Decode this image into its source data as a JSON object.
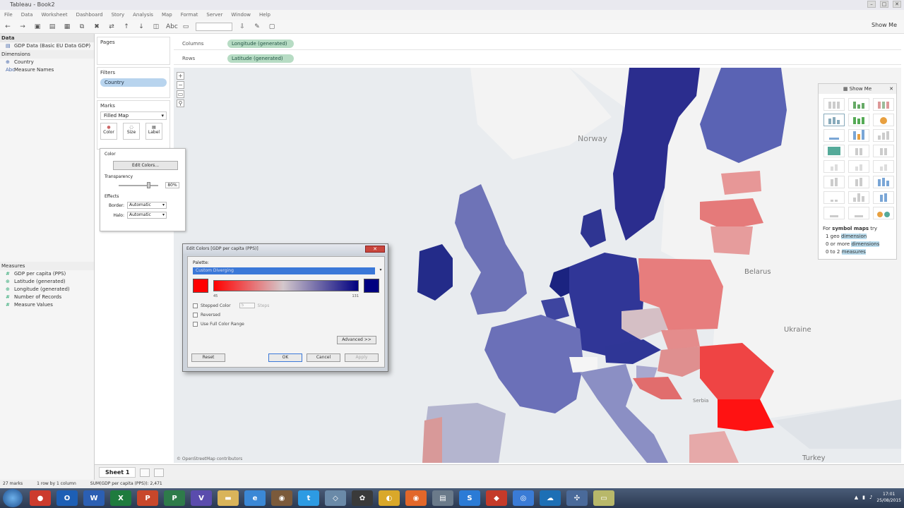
{
  "window": {
    "title": "Tableau - Book2"
  },
  "menu": [
    "File",
    "Data",
    "Worksheet",
    "Dashboard",
    "Story",
    "Analysis",
    "Map",
    "Format",
    "Server",
    "Window",
    "Help"
  ],
  "toolbar": {
    "show_me": "Show Me",
    "abc": "Abc"
  },
  "data_pane": {
    "header": "Data",
    "source": "GDP Data (Basic EU Data GDP)",
    "dimensions_header": "Dimensions",
    "dimensions": [
      "Country",
      "Measure Names"
    ],
    "measures_header": "Measures",
    "measures": [
      "GDP per capita (PPS)",
      "Latitude (generated)",
      "Longitude (generated)",
      "Number of Records",
      "Measure Values"
    ]
  },
  "pages": {
    "label": "Pages"
  },
  "filters": {
    "label": "Filters",
    "pill": "Country"
  },
  "marks": {
    "label": "Marks",
    "type": "Filled Map",
    "buttons": [
      "Color",
      "Size",
      "Label"
    ]
  },
  "shelves": {
    "columns_label": "Columns",
    "columns_pill": "Longitude (generated)",
    "rows_label": "Rows",
    "rows_pill": "Latitude (generated)"
  },
  "color_popup": {
    "title": "Color",
    "edit_button": "Edit Colors...",
    "transparency_label": "Transparency",
    "transparency_value": "80%",
    "effects_label": "Effects",
    "border_label": "Border:",
    "border_value": "Automatic",
    "halo_label": "Halo:",
    "halo_value": "Automatic"
  },
  "dialog": {
    "title": "Edit Colors [GDP per capita (PPS)]",
    "palette_label": "Palette:",
    "palette_value": "Custom Diverging",
    "min_value": "45",
    "max_value": "131",
    "stepped_label": "Stepped Color",
    "stepped_value": "5",
    "steps_label": "Steps",
    "reversed_label": "Reversed",
    "full_range_label": "Use Full Color Range",
    "advanced_button": "Advanced >>",
    "reset_button": "Reset",
    "ok_button": "OK",
    "cancel_button": "Cancel",
    "apply_button": "Apply",
    "start_color": "#ff0000",
    "end_color": "#000080"
  },
  "map": {
    "labels": {
      "norway": "Norway",
      "belarus": "Belarus",
      "ukraine": "Ukraine",
      "turkey": "Turkey",
      "serbia": "Serbia"
    },
    "attribution": "© OpenStreetMap contributors"
  },
  "show_me": {
    "title": "Show Me",
    "note_prefix": "For",
    "note_strong": "symbol maps",
    "note_suffix": "try",
    "lines": [
      {
        "count": "1 geo",
        "term": "dimension"
      },
      {
        "count": "0 or more",
        "term": "dimensions"
      },
      {
        "count": "0 to 2",
        "term": "measures"
      }
    ]
  },
  "sheet_tab": "Sheet 1",
  "status": {
    "marks": "27 marks",
    "rows": "1 row by 1 column",
    "sum": "SUM(GDP per capita (PPS)): 2,471"
  },
  "taskbar": {
    "time": "17:01",
    "date": "25/08/2015"
  }
}
